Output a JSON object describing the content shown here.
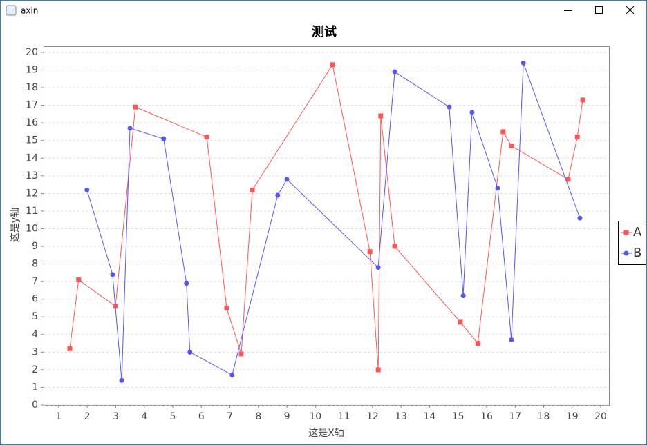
{
  "window": {
    "title": "axin"
  },
  "chart_data": {
    "type": "line",
    "title": "测试",
    "x_label": "这是X轴",
    "y_label": "这是y轴",
    "xlim": [
      0.47,
      20.29
    ],
    "xticks": [
      1,
      2,
      3,
      4,
      5,
      6,
      7,
      8,
      9,
      10,
      11,
      12,
      13,
      14,
      15,
      16,
      17,
      18,
      19,
      20
    ],
    "ylim": [
      0,
      20.35
    ],
    "yticks": [
      0,
      1,
      2,
      3,
      4,
      5,
      6,
      7,
      8,
      9,
      10,
      11,
      12,
      13,
      14,
      15,
      16,
      17,
      18,
      19,
      20
    ],
    "grid": true,
    "legend": "right",
    "series": [
      {
        "name": "A",
        "color": "#ff5555",
        "marker": "square",
        "x": [
          1.39,
          1.7,
          2.99,
          3.69,
          6.19,
          6.89,
          7.4,
          7.79,
          10.6,
          11.91,
          12.2,
          12.29,
          12.78,
          15.08,
          15.69,
          16.58,
          16.87,
          18.86,
          19.18,
          19.37
        ],
        "values": [
          3.2,
          7.1,
          5.6,
          16.9,
          15.2,
          5.5,
          2.9,
          12.2,
          19.3,
          8.7,
          2.0,
          16.4,
          9.0,
          4.7,
          3.5,
          15.5,
          14.7,
          12.8,
          15.2,
          17.3
        ]
      },
      {
        "name": "B",
        "color": "#5555ff",
        "marker": "circle",
        "x": [
          1.99,
          2.89,
          3.21,
          3.5,
          4.68,
          5.48,
          5.6,
          7.08,
          8.68,
          9.0,
          12.2,
          12.78,
          14.69,
          15.18,
          15.49,
          16.39,
          16.87,
          17.29,
          19.27
        ],
        "values": [
          12.2,
          7.4,
          1.4,
          15.7,
          15.1,
          6.9,
          3.0,
          1.7,
          11.9,
          12.8,
          7.8,
          18.9,
          16.9,
          6.2,
          16.6,
          12.3,
          3.7,
          19.4,
          10.6
        ]
      }
    ]
  }
}
